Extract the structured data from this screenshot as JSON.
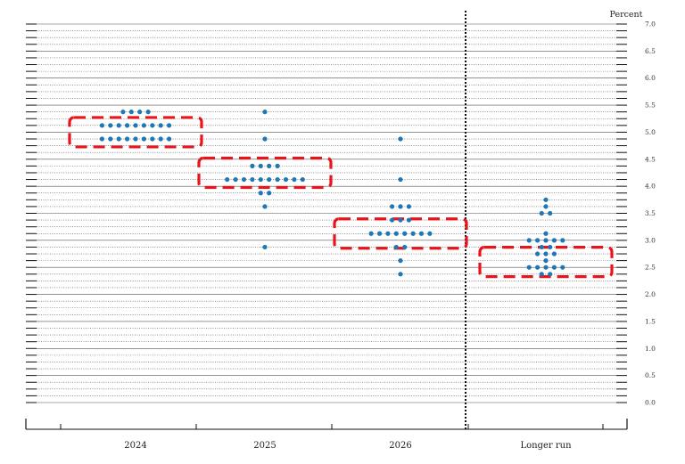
{
  "chart_data": {
    "type": "scatter",
    "unit_label": "Percent",
    "categories": [
      "2024",
      "2025",
      "2026",
      "Longer run"
    ],
    "ylim": [
      0,
      7.0
    ],
    "y_ticks": [
      "0.0",
      "0.5",
      "1.0",
      "1.5",
      "2.0",
      "2.5",
      "3.0",
      "3.5",
      "4.0",
      "4.5",
      "5.0",
      "5.5",
      "6.0",
      "6.5",
      "7.0"
    ],
    "minor_step": 0.125,
    "dot_color": "#1f77b4",
    "highlight_color": "#e8141b",
    "rows": [
      {
        "category": "2024",
        "y": 5.375,
        "count": 4
      },
      {
        "category": "2024",
        "y": 5.125,
        "count": 9
      },
      {
        "category": "2024",
        "y": 4.875,
        "count": 9
      },
      {
        "category": "2025",
        "y": 5.375,
        "count": 1
      },
      {
        "category": "2025",
        "y": 4.875,
        "count": 1
      },
      {
        "category": "2025",
        "y": 4.375,
        "count": 4
      },
      {
        "category": "2025",
        "y": 4.125,
        "count": 10
      },
      {
        "category": "2025",
        "y": 3.875,
        "count": 2
      },
      {
        "category": "2025",
        "y": 3.625,
        "count": 1
      },
      {
        "category": "2025",
        "y": 2.875,
        "count": 1
      },
      {
        "category": "2026",
        "y": 4.875,
        "count": 1
      },
      {
        "category": "2026",
        "y": 4.125,
        "count": 1
      },
      {
        "category": "2026",
        "y": 3.625,
        "count": 3
      },
      {
        "category": "2026",
        "y": 3.375,
        "count": 3
      },
      {
        "category": "2026",
        "y": 3.125,
        "count": 8
      },
      {
        "category": "2026",
        "y": 2.875,
        "count": 2
      },
      {
        "category": "2026",
        "y": 2.625,
        "count": 1
      },
      {
        "category": "2026",
        "y": 2.375,
        "count": 1
      },
      {
        "category": "Longer run",
        "y": 3.75,
        "count": 1
      },
      {
        "category": "Longer run",
        "y": 3.625,
        "count": 1
      },
      {
        "category": "Longer run",
        "y": 3.5,
        "count": 2
      },
      {
        "category": "Longer run",
        "y": 3.125,
        "count": 1
      },
      {
        "category": "Longer run",
        "y": 3.0,
        "count": 5
      },
      {
        "category": "Longer run",
        "y": 2.875,
        "count": 2
      },
      {
        "category": "Longer run",
        "y": 2.75,
        "count": 3
      },
      {
        "category": "Longer run",
        "y": 2.625,
        "count": 1
      },
      {
        "category": "Longer run",
        "y": 2.5,
        "count": 5
      },
      {
        "category": "Longer run",
        "y": 2.375,
        "count": 2
      }
    ],
    "highlights": [
      {
        "category": "2024",
        "y": 5.0
      },
      {
        "category": "2025",
        "y": 4.25
      },
      {
        "category": "2026",
        "y": 3.125
      },
      {
        "category": "Longer run",
        "y": 2.6
      }
    ],
    "separator_before": "Longer run",
    "grid": true
  }
}
